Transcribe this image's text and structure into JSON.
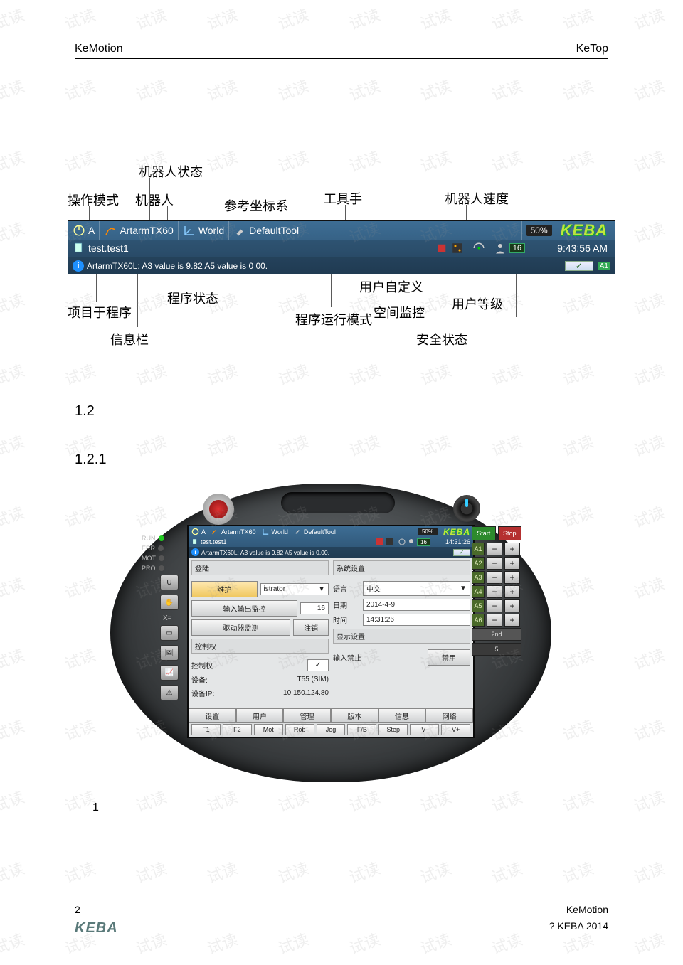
{
  "page": {
    "header_left": "KeMotion",
    "header_right": "KeTop",
    "footer_pagenum": "2",
    "footer_right1": "KeMotion",
    "footer_logo": "KEBA",
    "footer_right2": "? KEBA 2014",
    "watermark": "试读"
  },
  "sections": {
    "s12": "1.2",
    "s121": "1.2.1",
    "caption1": "1"
  },
  "annot": {
    "op_mode": "操作模式",
    "robot_state": "机器人状态",
    "robot": "机器人",
    "ref_frame": "参考坐标系",
    "tool": "工具手",
    "robot_speed": "机器人速度",
    "proj_prog": "项目于程序",
    "prog_state": "程序状态",
    "run_mode": "程序运行模式",
    "user_def": "用户自定义",
    "space_mon": "空间监控",
    "user_level": "用户等级",
    "info_bar": "信息栏",
    "safety": "安全状态"
  },
  "hdr": {
    "mode_letter": "A",
    "robot": "ArtarmTX60",
    "frame": "World",
    "tool": "DefaultTool",
    "speed": "50%",
    "brand": "KEBA",
    "project": "test.test1",
    "user_level": "16",
    "time": "9:43:56 AM",
    "msg": "ArtarmTX60L: A3 value is 9.82 A5 value is 0 00.",
    "safety_tag": "A1"
  },
  "pendant": {
    "hdr": {
      "mode_letter": "A",
      "robot": "ArtarmTX60",
      "frame": "World",
      "tool": "DefaultTool",
      "speed": "50%",
      "brand": "KEBA",
      "project": "test.test1",
      "user_level": "16",
      "time": "14:31:26",
      "msg": "ArtarmTX60L: A3 value is 9.82 A5 value is 0.00."
    },
    "left": {
      "panel_title": "登陆",
      "btn_maint": "维护",
      "btn_io": "输入输出监控",
      "btn_drive": "驱动器监测",
      "user_dd_label": "istrator",
      "userlevel_val": "16",
      "btn_logout": "注销",
      "panel2_title": "控制权",
      "ctrl_label": "控制权",
      "dev_label": "设备:",
      "dev_val": "T55 (SIM)",
      "ip_label": "设备IP:",
      "ip_val": "10.150.124.80"
    },
    "right": {
      "panel_title": "系统设置",
      "lang_label": "语言",
      "lang_val": "中文",
      "date_label": "日期",
      "date_val": "2014-4-9",
      "time_label": "时间",
      "time_val": "14:31:26",
      "panel2_title": "显示设置",
      "inputlock_label": "输入禁止",
      "inputlock_btn": "禁用"
    },
    "tabs": [
      "设置",
      "用户",
      "管理",
      "版本",
      "信息",
      "网络"
    ],
    "fkeys": [
      "F1",
      "F2",
      "Mot",
      "Rob",
      "Jog",
      "F/B",
      "Step",
      "V-",
      "V+"
    ],
    "leds": {
      "run": "RUN",
      "err": "ERR",
      "mot": "MOT",
      "pro": "PRO"
    },
    "side_labels": {
      "u": "U",
      "hand": "",
      "xeq": "X=",
      "rect": "",
      "img": "",
      "chart": "",
      "warn": "⚠"
    },
    "axes": [
      "A1",
      "A2",
      "A3",
      "A4",
      "A5",
      "A6"
    ],
    "start": "Start",
    "stop": "Stop",
    "second": "2nd",
    "five": "5"
  }
}
